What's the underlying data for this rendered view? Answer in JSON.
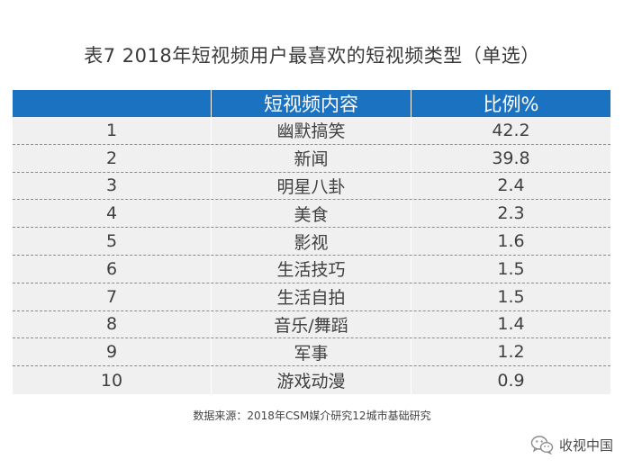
{
  "title": "表7  2018年短视频用户最喜欢的短视频类型（单选）",
  "table": {
    "headers": [
      "",
      "短视频内容",
      "比例%"
    ],
    "rows": [
      {
        "rank": "1",
        "content": "幽默搞笑",
        "percent": "42.2"
      },
      {
        "rank": "2",
        "content": "新闻",
        "percent": "39.8"
      },
      {
        "rank": "3",
        "content": "明星八卦",
        "percent": "2.4"
      },
      {
        "rank": "4",
        "content": "美食",
        "percent": "2.3"
      },
      {
        "rank": "5",
        "content": "影视",
        "percent": "1.6"
      },
      {
        "rank": "6",
        "content": "生活技巧",
        "percent": "1.5"
      },
      {
        "rank": "7",
        "content": "生活自拍",
        "percent": "1.5"
      },
      {
        "rank": "8",
        "content": "音乐/舞蹈",
        "percent": "1.4"
      },
      {
        "rank": "9",
        "content": "军事",
        "percent": "1.2"
      },
      {
        "rank": "10",
        "content": "游戏动漫",
        "percent": "0.9"
      }
    ]
  },
  "source": "数据来源：2018年CSM媒介研究12城市基础研究",
  "brand": {
    "name": "收视中国",
    "icon": "wechat-icon"
  },
  "colors": {
    "header_bg": "#1b72c0",
    "table_bg": "#f0f0f1"
  }
}
